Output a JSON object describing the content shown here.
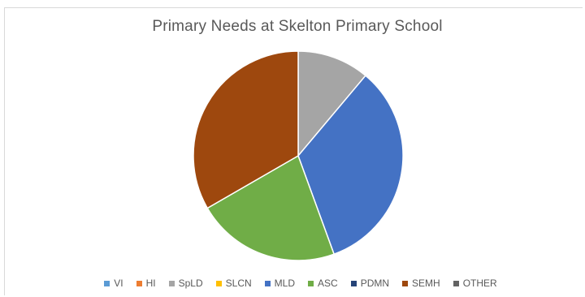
{
  "chart_data": {
    "type": "pie",
    "title": "Primary Needs at Skelton Primary School",
    "categories": [
      "VI",
      "HI",
      "SpLD",
      "SLCN",
      "MLD",
      "ASC",
      "PDMN",
      "SEMH",
      "OTHER"
    ],
    "values": [
      0,
      0,
      1,
      0,
      3,
      2,
      0,
      3,
      0
    ],
    "colors": [
      "#5b9bd5",
      "#ed7d31",
      "#a5a5a5",
      "#ffc000",
      "#4472c4",
      "#70ad47",
      "#264478",
      "#9e480e",
      "#636363"
    ],
    "legend_position": "bottom"
  }
}
